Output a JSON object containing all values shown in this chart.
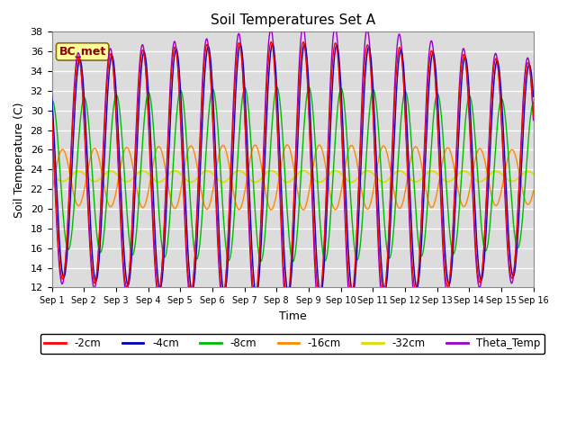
{
  "title": "Soil Temperatures Set A",
  "xlabel": "Time",
  "ylabel": "Soil Temperature (C)",
  "ylim": [
    12,
    38
  ],
  "xlim": [
    0,
    15
  ],
  "xtick_labels": [
    "Sep 1",
    "Sep 2",
    "Sep 3",
    "Sep 4",
    "Sep 5",
    "Sep 6",
    "Sep 7",
    "Sep 8",
    "Sep 9",
    "Sep 10",
    "Sep 11",
    "Sep 12",
    "Sep 13",
    "Sep 14",
    "Sep 15",
    "Sep 16"
  ],
  "legend_entries": [
    "-2cm",
    "-4cm",
    "-8cm",
    "-16cm",
    "-32cm",
    "Theta_Temp"
  ],
  "line_colors": [
    "#FF0000",
    "#0000BB",
    "#00BB00",
    "#FF8800",
    "#DDDD00",
    "#9900CC"
  ],
  "annotation_text": "BC_met",
  "annotation_color": "#8B0000",
  "annotation_bg": "#FFFF99",
  "background_color": "#DCDCDC",
  "figsize": [
    6.4,
    4.8
  ],
  "dpi": 100,
  "mean_2cm": 24.0,
  "amp_2cm": 11.0,
  "mean_4cm": 24.0,
  "amp_4cm": 10.8,
  "phase_4cm": 0.04,
  "mean_8cm": 23.5,
  "amp_8cm": 7.5,
  "phase_8cm": 0.18,
  "mean_16cm": 23.2,
  "amp_16cm": 2.8,
  "phase_16cm": 0.5,
  "mean_32cm": 23.3,
  "amp_32cm": 0.5,
  "phase_32cm": 1.0,
  "mean_theta": 24.0,
  "amp_theta": 11.5,
  "phase_theta": -0.01
}
